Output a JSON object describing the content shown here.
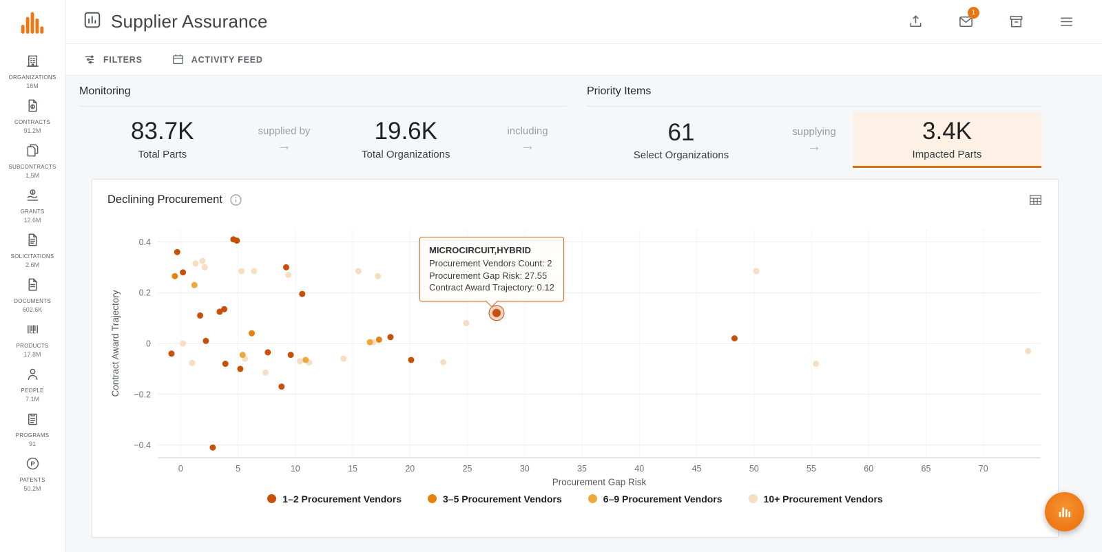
{
  "app": {
    "title": "Supplier Assurance",
    "notification_badge": "1"
  },
  "sidebar": {
    "items": [
      {
        "label": "ORGANIZATIONS",
        "count": "16M",
        "icon": "building"
      },
      {
        "label": "CONTRACTS",
        "count": "91.2M",
        "icon": "contract-document"
      },
      {
        "label": "SUBCONTRACTS",
        "count": "1.5M",
        "icon": "stacked-documents"
      },
      {
        "label": "GRANTS",
        "count": "12.6M",
        "icon": "hand-coin"
      },
      {
        "label": "SOLICITATIONS",
        "count": "2.6M",
        "icon": "document-lines"
      },
      {
        "label": "DOCUMENTS",
        "count": "602.6K",
        "icon": "document"
      },
      {
        "label": "PRODUCTS",
        "count": "17.8M",
        "icon": "barcode"
      },
      {
        "label": "PEOPLE",
        "count": "7.1M",
        "icon": "person"
      },
      {
        "label": "PROGRAMS",
        "count": "91",
        "icon": "clipboard"
      },
      {
        "label": "PATENTS",
        "count": "50.2M",
        "icon": "patent-circle-p"
      }
    ]
  },
  "toolbar": {
    "filters": "FILTERS",
    "activity_feed": "ACTIVITY FEED"
  },
  "monitoring": {
    "title": "Monitoring",
    "stat1": {
      "value": "83.7K",
      "label": "Total Parts"
    },
    "connector1": "supplied by",
    "stat2": {
      "value": "19.6K",
      "label": "Total Organizations"
    },
    "connector2": "including"
  },
  "priority": {
    "title": "Priority Items",
    "stat1": {
      "value": "61",
      "label": "Select Organizations"
    },
    "connector1": "supplying",
    "stat2": {
      "value": "3.4K",
      "label": "Impacted Parts"
    }
  },
  "chart": {
    "title": "Declining Procurement"
  },
  "tooltip": {
    "title": "MICROCIRCUIT,HYBRID",
    "line1": "Procurement Vendors Count: 2",
    "line2": "Procurement Gap Risk: 27.55",
    "line3": "Contract Award Trajectory: 0.12"
  },
  "chart_data": {
    "type": "scatter",
    "title": "Declining Procurement",
    "xlabel": "Procurement Gap Risk",
    "ylabel": "Contract Award Trajectory",
    "xlim": [
      -2,
      75
    ],
    "ylim": [
      -0.45,
      0.45
    ],
    "x_ticks": [
      0,
      5,
      10,
      15,
      20,
      25,
      30,
      35,
      40,
      45,
      50,
      55,
      60,
      65,
      70
    ],
    "y_ticks": [
      -0.4,
      -0.2,
      0,
      0.2,
      0.4
    ],
    "grid": true,
    "legend_position": "bottom",
    "series": [
      {
        "name": "1–2 Procurement Vendors",
        "color": "#c7500a",
        "points": [
          [
            -0.8,
            -0.04
          ],
          [
            -0.3,
            0.36
          ],
          [
            0.2,
            0.28
          ],
          [
            1.7,
            0.11
          ],
          [
            2.2,
            0.01
          ],
          [
            2.8,
            -0.41
          ],
          [
            3.4,
            0.125
          ],
          [
            3.8,
            0.135
          ],
          [
            3.9,
            -0.08
          ],
          [
            4.6,
            0.41
          ],
          [
            4.9,
            0.405
          ],
          [
            5.2,
            -0.1
          ],
          [
            7.6,
            -0.035
          ],
          [
            8.8,
            -0.17
          ],
          [
            9.2,
            0.3
          ],
          [
            9.6,
            -0.045
          ],
          [
            10.6,
            0.195
          ],
          [
            18.3,
            0.025
          ],
          [
            20.1,
            -0.065
          ],
          [
            27.55,
            0.12
          ],
          [
            48.3,
            0.02
          ]
        ]
      },
      {
        "name": "3–5 Procurement Vendors",
        "color": "#e8820e",
        "points": [
          [
            -0.5,
            0.265
          ],
          [
            6.2,
            0.04
          ],
          [
            17.3,
            0.015
          ]
        ]
      },
      {
        "name": "6–9 Procurement Vendors",
        "color": "#edaa3a",
        "points": [
          [
            1.2,
            0.23
          ],
          [
            5.4,
            -0.045
          ],
          [
            10.9,
            -0.065
          ],
          [
            16.5,
            0.005
          ]
        ]
      },
      {
        "name": "10+ Procurement Vendors",
        "color": "#f7ddc2",
        "points": [
          [
            0.2,
            0.0
          ],
          [
            1.0,
            -0.077
          ],
          [
            1.3,
            0.315
          ],
          [
            1.9,
            0.325
          ],
          [
            2.1,
            0.3
          ],
          [
            5.3,
            0.285
          ],
          [
            5.6,
            -0.06
          ],
          [
            6.4,
            0.285
          ],
          [
            7.4,
            -0.115
          ],
          [
            9.4,
            0.27
          ],
          [
            10.4,
            -0.07
          ],
          [
            11.2,
            -0.075
          ],
          [
            14.2,
            -0.06
          ],
          [
            15.5,
            0.285
          ],
          [
            16.8,
            0.005
          ],
          [
            17.2,
            0.265
          ],
          [
            22.9,
            -0.074
          ],
          [
            24.9,
            0.08
          ],
          [
            50.2,
            0.285
          ],
          [
            55.4,
            -0.08
          ],
          [
            73.9,
            -0.03
          ]
        ]
      }
    ],
    "highlight": {
      "series": 0,
      "x": 27.55,
      "y": 0.12
    }
  }
}
